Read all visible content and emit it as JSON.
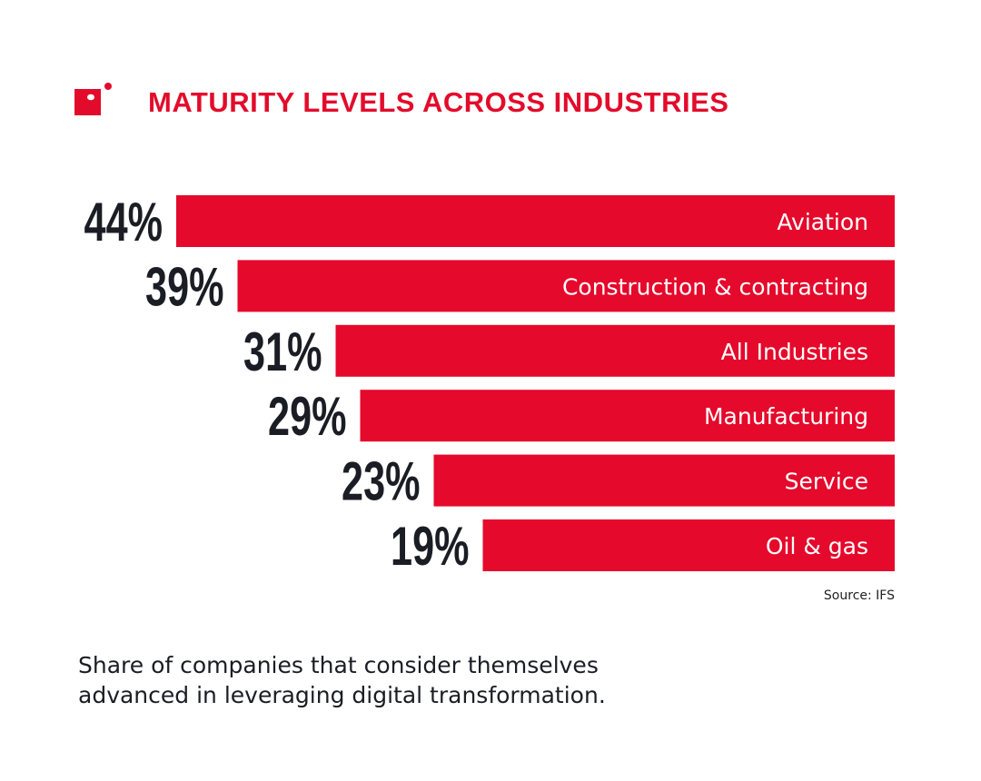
{
  "colors": {
    "bar": "#e5092b",
    "value_text": "#1a1d24",
    "title": "#e30b2b"
  },
  "logo_icon": "red-square-with-dot-logo",
  "chart_data": {
    "type": "bar",
    "orientation": "horizontal",
    "title": "MATURITY LEVELS ACROSS INDUSTRIES",
    "categories": [
      "Aviation",
      "Construction & contracting",
      "All Industries",
      "Manufacturing",
      "Service",
      "Oil & gas"
    ],
    "values": [
      44,
      39,
      31,
      29,
      23,
      19
    ],
    "value_labels": [
      "44%",
      "39%",
      "31%",
      "29%",
      "23%",
      "19%"
    ],
    "unit": "%",
    "grid": false,
    "legend": "none",
    "source": "Source: IFS",
    "subtitle": "Share of companies that consider themselves advanced in leveraging digital transformation."
  }
}
